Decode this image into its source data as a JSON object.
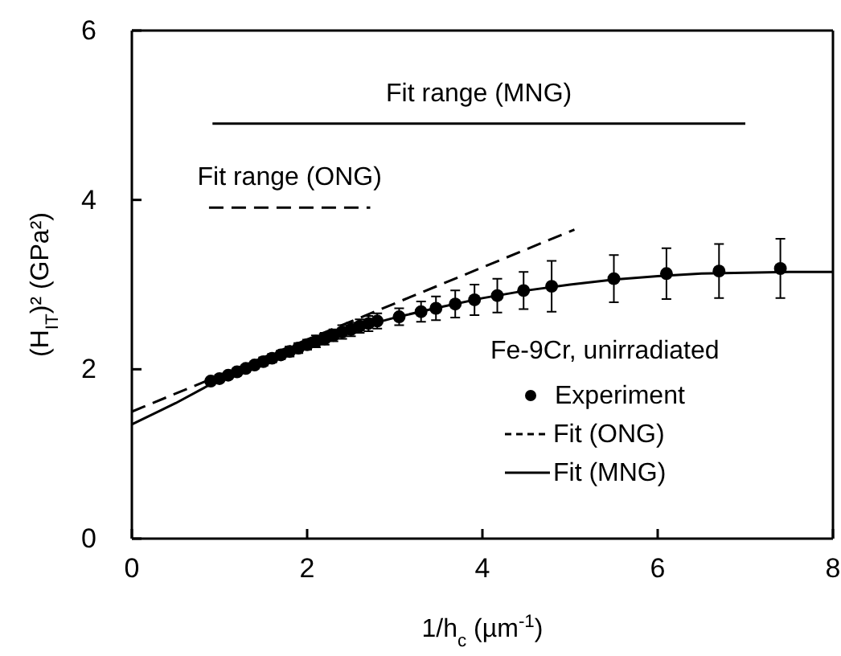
{
  "chart_data": {
    "type": "scatter",
    "xlabel": "1/h$_{c}$ (µm$^{-1}$)",
    "ylabel": "(H$_{IT}$)² (GPa²)",
    "legend_title": "Fe-9Cr, unirradiated",
    "legend": "bottom right",
    "grid": false,
    "xlim": [
      0,
      8
    ],
    "ylim": [
      0,
      6
    ],
    "xticks": [
      0,
      2,
      4,
      6,
      8
    ],
    "yticks": [
      0,
      2,
      4,
      6
    ],
    "series": [
      {
        "name": "Experiment",
        "marker": "circle",
        "color": "#000000",
        "x": [
          0.9,
          1.0,
          1.1,
          1.2,
          1.3,
          1.4,
          1.5,
          1.6,
          1.7,
          1.8,
          1.9,
          2.0,
          2.1,
          2.2,
          2.3,
          2.4,
          2.5,
          2.6,
          2.7,
          2.8,
          3.05,
          3.3,
          3.47,
          3.69,
          3.91,
          4.17,
          4.47,
          4.79,
          5.5,
          6.1,
          6.7,
          7.4
        ],
        "values": [
          1.86,
          1.89,
          1.93,
          1.97,
          2.01,
          2.05,
          2.09,
          2.13,
          2.17,
          2.21,
          2.25,
          2.29,
          2.33,
          2.36,
          2.4,
          2.44,
          2.47,
          2.51,
          2.54,
          2.57,
          2.62,
          2.68,
          2.72,
          2.77,
          2.82,
          2.87,
          2.93,
          2.98,
          3.07,
          3.13,
          3.16,
          3.19
        ],
        "errors": [
          0.03,
          0.03,
          0.03,
          0.04,
          0.04,
          0.04,
          0.05,
          0.05,
          0.05,
          0.06,
          0.06,
          0.06,
          0.07,
          0.07,
          0.07,
          0.08,
          0.08,
          0.08,
          0.09,
          0.09,
          0.1,
          0.12,
          0.14,
          0.16,
          0.18,
          0.2,
          0.22,
          0.3,
          0.28,
          0.3,
          0.32,
          0.35
        ]
      },
      {
        "name": "Fit (ONG)",
        "type": "line",
        "line_style": "dashed",
        "marker": "none",
        "color": "#000000",
        "x": [
          0,
          5.05
        ],
        "values": [
          1.5,
          3.65
        ]
      },
      {
        "name": "Fit (MNG)",
        "type": "line",
        "line_style": "solid",
        "marker": "none",
        "color": "#000000",
        "x": [
          0,
          0.5,
          1,
          1.5,
          2,
          2.5,
          3,
          3.5,
          4,
          4.5,
          5,
          5.5,
          6,
          6.5,
          7,
          7.5,
          8
        ],
        "values": [
          1.35,
          1.6,
          1.88,
          2.1,
          2.3,
          2.47,
          2.61,
          2.73,
          2.84,
          2.93,
          3.0,
          3.06,
          3.1,
          3.13,
          3.14,
          3.15,
          3.15
        ]
      },
      {
        "type": "line",
        "line_style": "solid",
        "marker": "none",
        "color": "#000000",
        "x": [
          0.92,
          7.0
        ],
        "values": [
          4.9,
          4.9
        ]
      },
      {
        "type": "line",
        "line_style": "dashed",
        "marker": "none",
        "color": "#000000",
        "x": [
          0.88,
          2.72
        ],
        "values": [
          3.91,
          3.91
        ]
      }
    ],
    "annotations": [
      {
        "text": "Fit range (MNG)",
        "x": 3.96,
        "y": 4.9
      },
      {
        "text": "Fit range (ONG)",
        "x": 1.8,
        "y": 3.91
      }
    ]
  }
}
